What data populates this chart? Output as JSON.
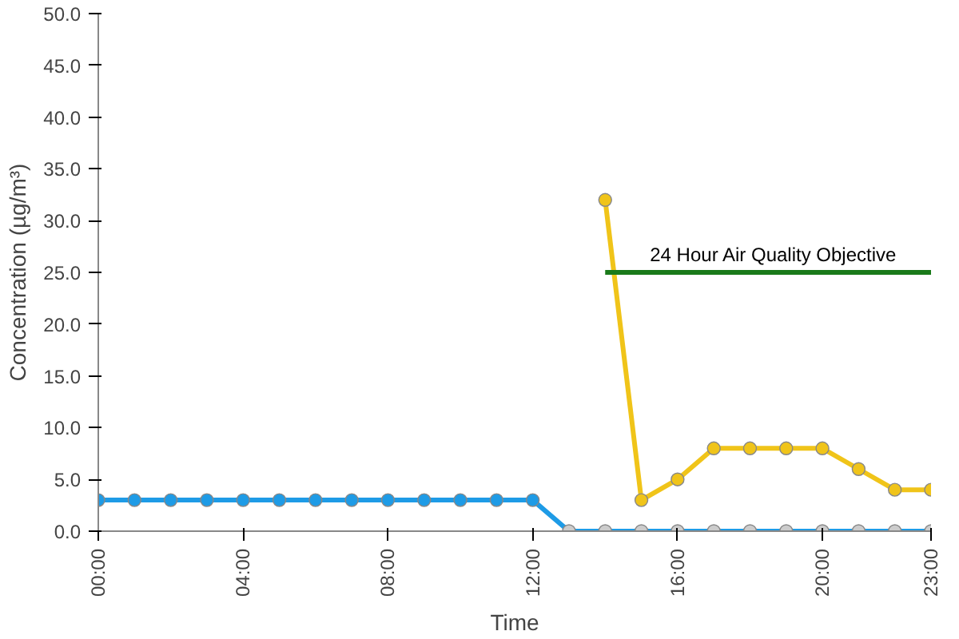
{
  "chart_data": {
    "type": "line",
    "xlabel": "Time",
    "ylabel": "Concentration (µg/m³)",
    "xlim": [
      0,
      23
    ],
    "xticks": [
      {
        "value": 0,
        "label": "00:00"
      },
      {
        "value": 4,
        "label": "04:00"
      },
      {
        "value": 8,
        "label": "08:00"
      },
      {
        "value": 12,
        "label": "12:00"
      },
      {
        "value": 16,
        "label": "16:00"
      },
      {
        "value": 20,
        "label": "20:00"
      },
      {
        "value": 23,
        "label": "23:00"
      }
    ],
    "ylim": [
      0,
      50
    ],
    "yticks": [
      {
        "value": 0,
        "label": "0.0"
      },
      {
        "value": 5,
        "label": "5.0"
      },
      {
        "value": 10,
        "label": "10.0"
      },
      {
        "value": 15,
        "label": "15.0"
      },
      {
        "value": 20,
        "label": "20.0"
      },
      {
        "value": 25,
        "label": "25.0"
      },
      {
        "value": 30,
        "label": "30.0"
      },
      {
        "value": 35,
        "label": "35.0"
      },
      {
        "value": 40,
        "label": "40.0"
      },
      {
        "value": 45,
        "label": "45.0"
      },
      {
        "value": 50,
        "label": "50.0"
      }
    ],
    "grid": false,
    "marker": "circle",
    "series": [
      {
        "color": "#1e9be6",
        "x": [
          0,
          1,
          2,
          3,
          4,
          5,
          6,
          7,
          8,
          9,
          10,
          11,
          12,
          13,
          14,
          15,
          16,
          17,
          18,
          19,
          20,
          21,
          22,
          23
        ],
        "values": [
          3,
          3,
          3,
          3,
          3,
          3,
          3,
          3,
          3,
          3,
          3,
          3,
          3,
          0,
          0,
          0,
          0,
          0,
          0,
          0,
          0,
          0,
          0,
          0
        ],
        "colors": [
          "#1e9be6",
          "#1e9be6",
          "#1e9be6",
          "#1e9be6",
          "#1e9be6",
          "#1e9be6",
          "#1e9be6",
          "#1e9be6",
          "#1e9be6",
          "#1e9be6",
          "#1e9be6",
          "#1e9be6",
          "#1e9be6",
          "#cccccc",
          "#cccccc",
          "#cccccc",
          "#cccccc",
          "#cccccc",
          "#cccccc",
          "#cccccc",
          "#cccccc",
          "#cccccc",
          "#cccccc",
          "#cccccc"
        ]
      },
      {
        "color": "#f0c419",
        "x": [
          14,
          15,
          16,
          17,
          18,
          19,
          20,
          21,
          22,
          23
        ],
        "values": [
          32,
          3,
          5,
          8,
          8,
          8,
          8,
          6,
          4,
          4
        ]
      },
      {
        "name": "24 Hour Air Quality Objective",
        "color": "#1a7a1a",
        "marker": "none",
        "x": [
          14,
          23
        ],
        "values": [
          25,
          25
        ]
      }
    ]
  }
}
